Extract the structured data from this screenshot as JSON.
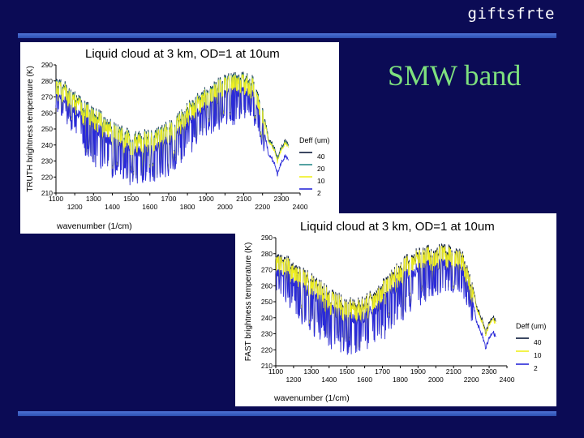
{
  "header": {
    "brand": "giftsfrte",
    "slide_title": "SMW band"
  },
  "colors": {
    "background": "#0b0b55",
    "rule": "#3d60c4",
    "title_text": "#7ee07e"
  },
  "chart_data": [
    {
      "type": "line",
      "title": "Liquid cloud at 3 km, OD=1 at 10um",
      "xlabel": "wavenumber (1/cm)",
      "ylabel": "TRUTH brightness temperature (K)",
      "xlim": [
        1100,
        2400
      ],
      "ylim": [
        210,
        290
      ],
      "x_ticks_upper": [
        "1100",
        "1300",
        "1500",
        "1700",
        "1900",
        "2100",
        "2300"
      ],
      "x_ticks_lower": [
        "1200",
        "1400",
        "1600",
        "1800",
        "2000",
        "2200",
        "2400"
      ],
      "y_ticks": [
        "290",
        "280",
        "270",
        "260",
        "250",
        "240",
        "230",
        "220",
        "210"
      ],
      "legend_title": "Deff (um)",
      "legend_position": "right",
      "envelope": {
        "x": [
          1100,
          1150,
          1200,
          1250,
          1300,
          1350,
          1400,
          1450,
          1500,
          1550,
          1600,
          1650,
          1700,
          1750,
          1800,
          1850,
          1900,
          1950,
          2000,
          2050,
          2100,
          2150,
          2200,
          2230,
          2260,
          2280,
          2300,
          2320,
          2340
        ],
        "upper": [
          279,
          278,
          272,
          266,
          262,
          258,
          254,
          250,
          248,
          247,
          248,
          250,
          253,
          258,
          264,
          270,
          275,
          279,
          282,
          283,
          284,
          282,
          262,
          244,
          238,
          230,
          238,
          242,
          238
        ],
        "lower": [
          262,
          256,
          246,
          236,
          228,
          224,
          220,
          218,
          216,
          215,
          217,
          219,
          222,
          228,
          234,
          240,
          246,
          250,
          252,
          254,
          256,
          254,
          240,
          228,
          226,
          225,
          232,
          236,
          232
        ]
      },
      "series": [
        {
          "name": "40",
          "color": "#0b1a3a",
          "offset": 2.5
        },
        {
          "name": "20",
          "color": "#2a8a8a",
          "offset": 1.8
        },
        {
          "name": "10",
          "color": "#f0f020",
          "offset": 1.0
        },
        {
          "name": "2",
          "color": "#2a2ad8",
          "offset": -7.0
        }
      ]
    },
    {
      "type": "line",
      "title": "Liquid cloud at 3 km, OD=1 at 10um",
      "xlabel": "wavenumber (1/cm)",
      "ylabel": "FAST brightness temperature (K)",
      "xlim": [
        1100,
        2400
      ],
      "ylim": [
        210,
        290
      ],
      "x_ticks_upper": [
        "1100",
        "1300",
        "1500",
        "1700",
        "1900",
        "2100",
        "2300"
      ],
      "x_ticks_lower": [
        "1200",
        "1400",
        "1600",
        "1800",
        "2000",
        "2200",
        "2400"
      ],
      "y_ticks": [
        "290",
        "280",
        "270",
        "260",
        "250",
        "240",
        "230",
        "220",
        "210"
      ],
      "legend_title": "Deff (um)",
      "legend_position": "right",
      "envelope": {
        "x": [
          1100,
          1150,
          1200,
          1250,
          1300,
          1350,
          1400,
          1450,
          1500,
          1550,
          1600,
          1650,
          1700,
          1750,
          1800,
          1850,
          1900,
          1950,
          2000,
          2050,
          2100,
          2150,
          2200,
          2230,
          2260,
          2280,
          2300,
          2320,
          2340
        ],
        "upper": [
          278,
          278,
          274,
          270,
          266,
          262,
          258,
          254,
          251,
          250,
          252,
          256,
          262,
          268,
          274,
          279,
          282,
          283,
          284,
          284,
          283,
          280,
          262,
          246,
          238,
          230,
          236,
          240,
          236
        ],
        "lower": [
          258,
          252,
          244,
          236,
          230,
          226,
          222,
          220,
          218,
          217,
          219,
          222,
          226,
          232,
          238,
          244,
          248,
          252,
          254,
          255,
          256,
          252,
          238,
          226,
          224,
          224,
          230,
          234,
          230
        ]
      },
      "series": [
        {
          "name": "40",
          "color": "#0b1a3a",
          "offset": 2.5
        },
        {
          "name": "10",
          "color": "#f0f020",
          "offset": 1.2
        },
        {
          "name": "2",
          "color": "#2a2ad8",
          "offset": -7.0
        }
      ]
    }
  ]
}
